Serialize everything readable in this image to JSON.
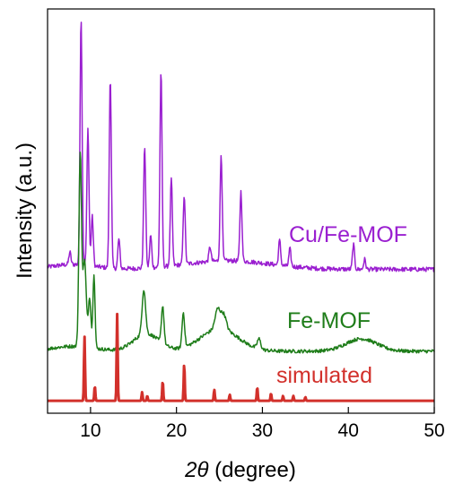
{
  "chart_data": {
    "type": "line",
    "title": "",
    "xlabel_italic": "2θ",
    "xlabel_rest": " (degree)",
    "ylabel": "Intensity (a.u.)",
    "xlim": [
      5,
      50
    ],
    "xticks": [
      10,
      20,
      30,
      40,
      50
    ],
    "y_ticks_shown": false,
    "grid": false,
    "legend": "inline labels at right",
    "series": [
      {
        "name": "Cu/Fe-MOF",
        "color": "#9a1fd0",
        "baseline": 5.3,
        "noise": 0.09,
        "hump": [
          [
            8.0,
            0.2,
            2.5
          ],
          [
            26.0,
            0.35,
            5.0
          ]
        ],
        "peaks": [
          [
            7.6,
            0.5,
            0.12
          ],
          [
            8.9,
            10.0,
            0.12
          ],
          [
            9.7,
            5.5,
            0.12
          ],
          [
            10.2,
            2.0,
            0.12
          ],
          [
            12.3,
            7.7,
            0.12
          ],
          [
            13.3,
            1.2,
            0.12
          ],
          [
            16.3,
            4.9,
            0.12
          ],
          [
            17.0,
            1.3,
            0.12
          ],
          [
            18.2,
            7.9,
            0.12
          ],
          [
            19.4,
            3.5,
            0.12
          ],
          [
            20.9,
            2.8,
            0.12
          ],
          [
            23.9,
            0.6,
            0.12
          ],
          [
            25.2,
            4.3,
            0.12
          ],
          [
            27.5,
            2.8,
            0.12
          ],
          [
            32.0,
            1.0,
            0.12
          ],
          [
            33.2,
            0.7,
            0.12
          ],
          [
            40.6,
            1.0,
            0.12
          ],
          [
            41.9,
            0.4,
            0.12
          ]
        ]
      },
      {
        "name": "Fe-MOF",
        "color": "#1f7d1a",
        "baseline": 2.0,
        "noise": 0.07,
        "hump": [
          [
            8.0,
            0.2,
            2.5
          ],
          [
            16.5,
            0.7,
            1.5
          ],
          [
            25.0,
            0.9,
            2.2
          ],
          [
            41.5,
            0.5,
            1.8
          ]
        ],
        "peaks": [
          [
            8.8,
            7.7,
            0.15
          ],
          [
            9.3,
            3.5,
            0.2
          ],
          [
            9.9,
            2.0,
            0.15
          ],
          [
            10.4,
            3.0,
            0.12
          ],
          [
            16.2,
            1.8,
            0.2
          ],
          [
            18.4,
            1.5,
            0.15
          ],
          [
            20.8,
            1.4,
            0.15
          ],
          [
            24.8,
            0.8,
            0.3
          ],
          [
            25.5,
            0.6,
            0.3
          ],
          [
            29.6,
            0.4,
            0.2
          ]
        ]
      },
      {
        "name": "simulated",
        "color": "#d2302b",
        "baseline": 0.0,
        "noise": 0.0,
        "hump": [],
        "peaks": [
          [
            9.3,
            2.6,
            0.06
          ],
          [
            10.5,
            0.6,
            0.06
          ],
          [
            13.1,
            3.5,
            0.06
          ],
          [
            16.0,
            0.35,
            0.06
          ],
          [
            16.6,
            0.2,
            0.06
          ],
          [
            18.4,
            0.8,
            0.06
          ],
          [
            20.9,
            1.5,
            0.06
          ],
          [
            24.4,
            0.45,
            0.06
          ],
          [
            26.2,
            0.25,
            0.06
          ],
          [
            29.4,
            0.55,
            0.06
          ],
          [
            31.0,
            0.3,
            0.06
          ],
          [
            32.4,
            0.2,
            0.06
          ],
          [
            33.6,
            0.2,
            0.06
          ],
          [
            35.0,
            0.15,
            0.06
          ]
        ]
      }
    ]
  }
}
